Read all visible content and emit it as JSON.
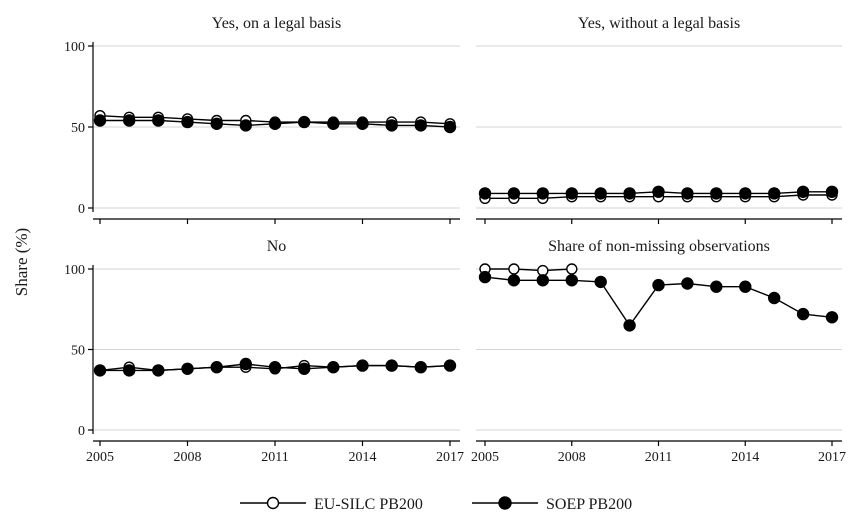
{
  "chart_data": {
    "type": "line",
    "ylabel": "Share (%)",
    "ylim": [
      0,
      100
    ],
    "yticks": [
      "0",
      "50",
      "100"
    ],
    "xticks": [
      "2005",
      "2008",
      "2011",
      "2014",
      "2017"
    ],
    "grid": true,
    "legend_position": "bottom",
    "legend": [
      {
        "name": "EU-SILC PB200",
        "marker": "hollow-circle"
      },
      {
        "name": "SOEP PB200",
        "marker": "filled-circle"
      }
    ],
    "panels": [
      {
        "title": "Yes, on a legal basis",
        "series": [
          {
            "name": "EU-SILC PB200",
            "x": [
              2005,
              2006,
              2007,
              2008,
              2009,
              2010,
              2011,
              2012,
              2013,
              2014,
              2015,
              2016,
              2017
            ],
            "values": [
              57,
              56,
              56,
              55,
              54,
              54,
              53,
              53,
              53,
              53,
              53,
              53,
              52
            ]
          },
          {
            "name": "SOEP PB200",
            "x": [
              2005,
              2006,
              2007,
              2008,
              2009,
              2010,
              2011,
              2012,
              2013,
              2014,
              2015,
              2016,
              2017
            ],
            "values": [
              54,
              54,
              54,
              53,
              52,
              51,
              52,
              53,
              52,
              52,
              51,
              51,
              50
            ]
          }
        ]
      },
      {
        "title": "Yes, without a legal basis",
        "series": [
          {
            "name": "EU-SILC PB200",
            "x": [
              2005,
              2006,
              2007,
              2008,
              2009,
              2010,
              2011,
              2012,
              2013,
              2014,
              2015,
              2016,
              2017
            ],
            "values": [
              6,
              6,
              6,
              7,
              7,
              7,
              7,
              7,
              7,
              7,
              7,
              8,
              8
            ]
          },
          {
            "name": "SOEP PB200",
            "x": [
              2005,
              2006,
              2007,
              2008,
              2009,
              2010,
              2011,
              2012,
              2013,
              2014,
              2015,
              2016,
              2017
            ],
            "values": [
              9,
              9,
              9,
              9,
              9,
              9,
              10,
              9,
              9,
              9,
              9,
              10,
              10
            ]
          }
        ]
      },
      {
        "title": "No",
        "series": [
          {
            "name": "EU-SILC PB200",
            "x": [
              2005,
              2006,
              2007,
              2008,
              2009,
              2010,
              2011,
              2012,
              2013,
              2014,
              2015,
              2016,
              2017
            ],
            "values": [
              37,
              39,
              37,
              38,
              39,
              39,
              38,
              40,
              39,
              40,
              40,
              39,
              40
            ]
          },
          {
            "name": "SOEP PB200",
            "x": [
              2005,
              2006,
              2007,
              2008,
              2009,
              2010,
              2011,
              2012,
              2013,
              2014,
              2015,
              2016,
              2017
            ],
            "values": [
              37,
              37,
              37,
              38,
              39,
              41,
              39,
              38,
              39,
              40,
              40,
              39,
              40
            ]
          }
        ]
      },
      {
        "title": "Share of non-missing observations",
        "series": [
          {
            "name": "EU-SILC PB200",
            "x": [
              2005,
              2006,
              2007,
              2008
            ],
            "values": [
              100,
              100,
              99,
              100
            ]
          },
          {
            "name": "SOEP PB200",
            "x": [
              2005,
              2006,
              2007,
              2008,
              2009,
              2010,
              2011,
              2012,
              2013,
              2014,
              2015,
              2016,
              2017
            ],
            "values": [
              95,
              93,
              93,
              93,
              92,
              65,
              90,
              91,
              89,
              89,
              82,
              72,
              70
            ]
          }
        ]
      }
    ]
  }
}
